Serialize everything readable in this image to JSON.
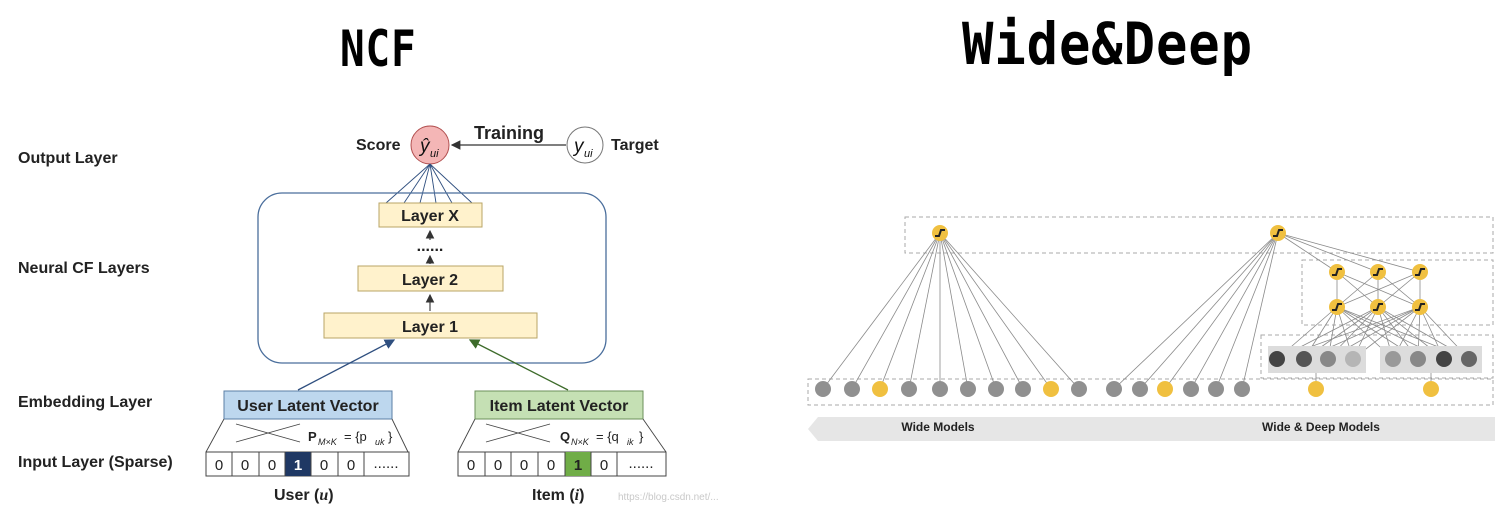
{
  "ncf": {
    "title": "NCF",
    "layer_labels": [
      "Output Layer",
      "Neural CF Layers",
      "Embedding Layer",
      "Input Layer (Sparse)"
    ],
    "score_label": "Score",
    "score_symbol": "ŷ",
    "score_sub": "ui",
    "target_label": "Target",
    "target_symbol": "y",
    "target_sub": "ui",
    "training_label": "Training",
    "layers": [
      "Layer X",
      "......",
      "Layer 2",
      "Layer 1"
    ],
    "user_vector_label": "User Latent Vector",
    "item_vector_label": "Item Latent Vector",
    "user_matrix": {
      "name": "P",
      "sub": "M×K",
      "rhs": "= {p",
      "rhs_sub": "uk",
      "close": "}"
    },
    "item_matrix": {
      "name": "Q",
      "sub": "N×K",
      "rhs": "= {q",
      "rhs_sub": "ik",
      "close": "}"
    },
    "user_input": [
      "0",
      "0",
      "0",
      "1",
      "0",
      "0",
      "......"
    ],
    "item_input": [
      "0",
      "0",
      "0",
      "0",
      "1",
      "0",
      "......"
    ],
    "user_caption": "User (",
    "user_var": "u",
    "item_caption": "Item (",
    "item_var": "i",
    "caption_close": ")",
    "colors": {
      "user_active": "#1f3864",
      "item_active": "#70ad47",
      "user_vector": "#bdd7ee",
      "item_vector": "#c5e0b4",
      "layer_fill": "#fff2cc",
      "score_fill": "#f4b6b6"
    }
  },
  "wide_deep": {
    "title": "Wide&Deep",
    "wide_label": "Wide Models",
    "wide_deep_label": "Wide & Deep Models",
    "colors": {
      "yellow": "#f0c040",
      "gray": "#909090",
      "band": "#e6e6e6"
    }
  },
  "watermark": "https://blog.csdn.net/..."
}
